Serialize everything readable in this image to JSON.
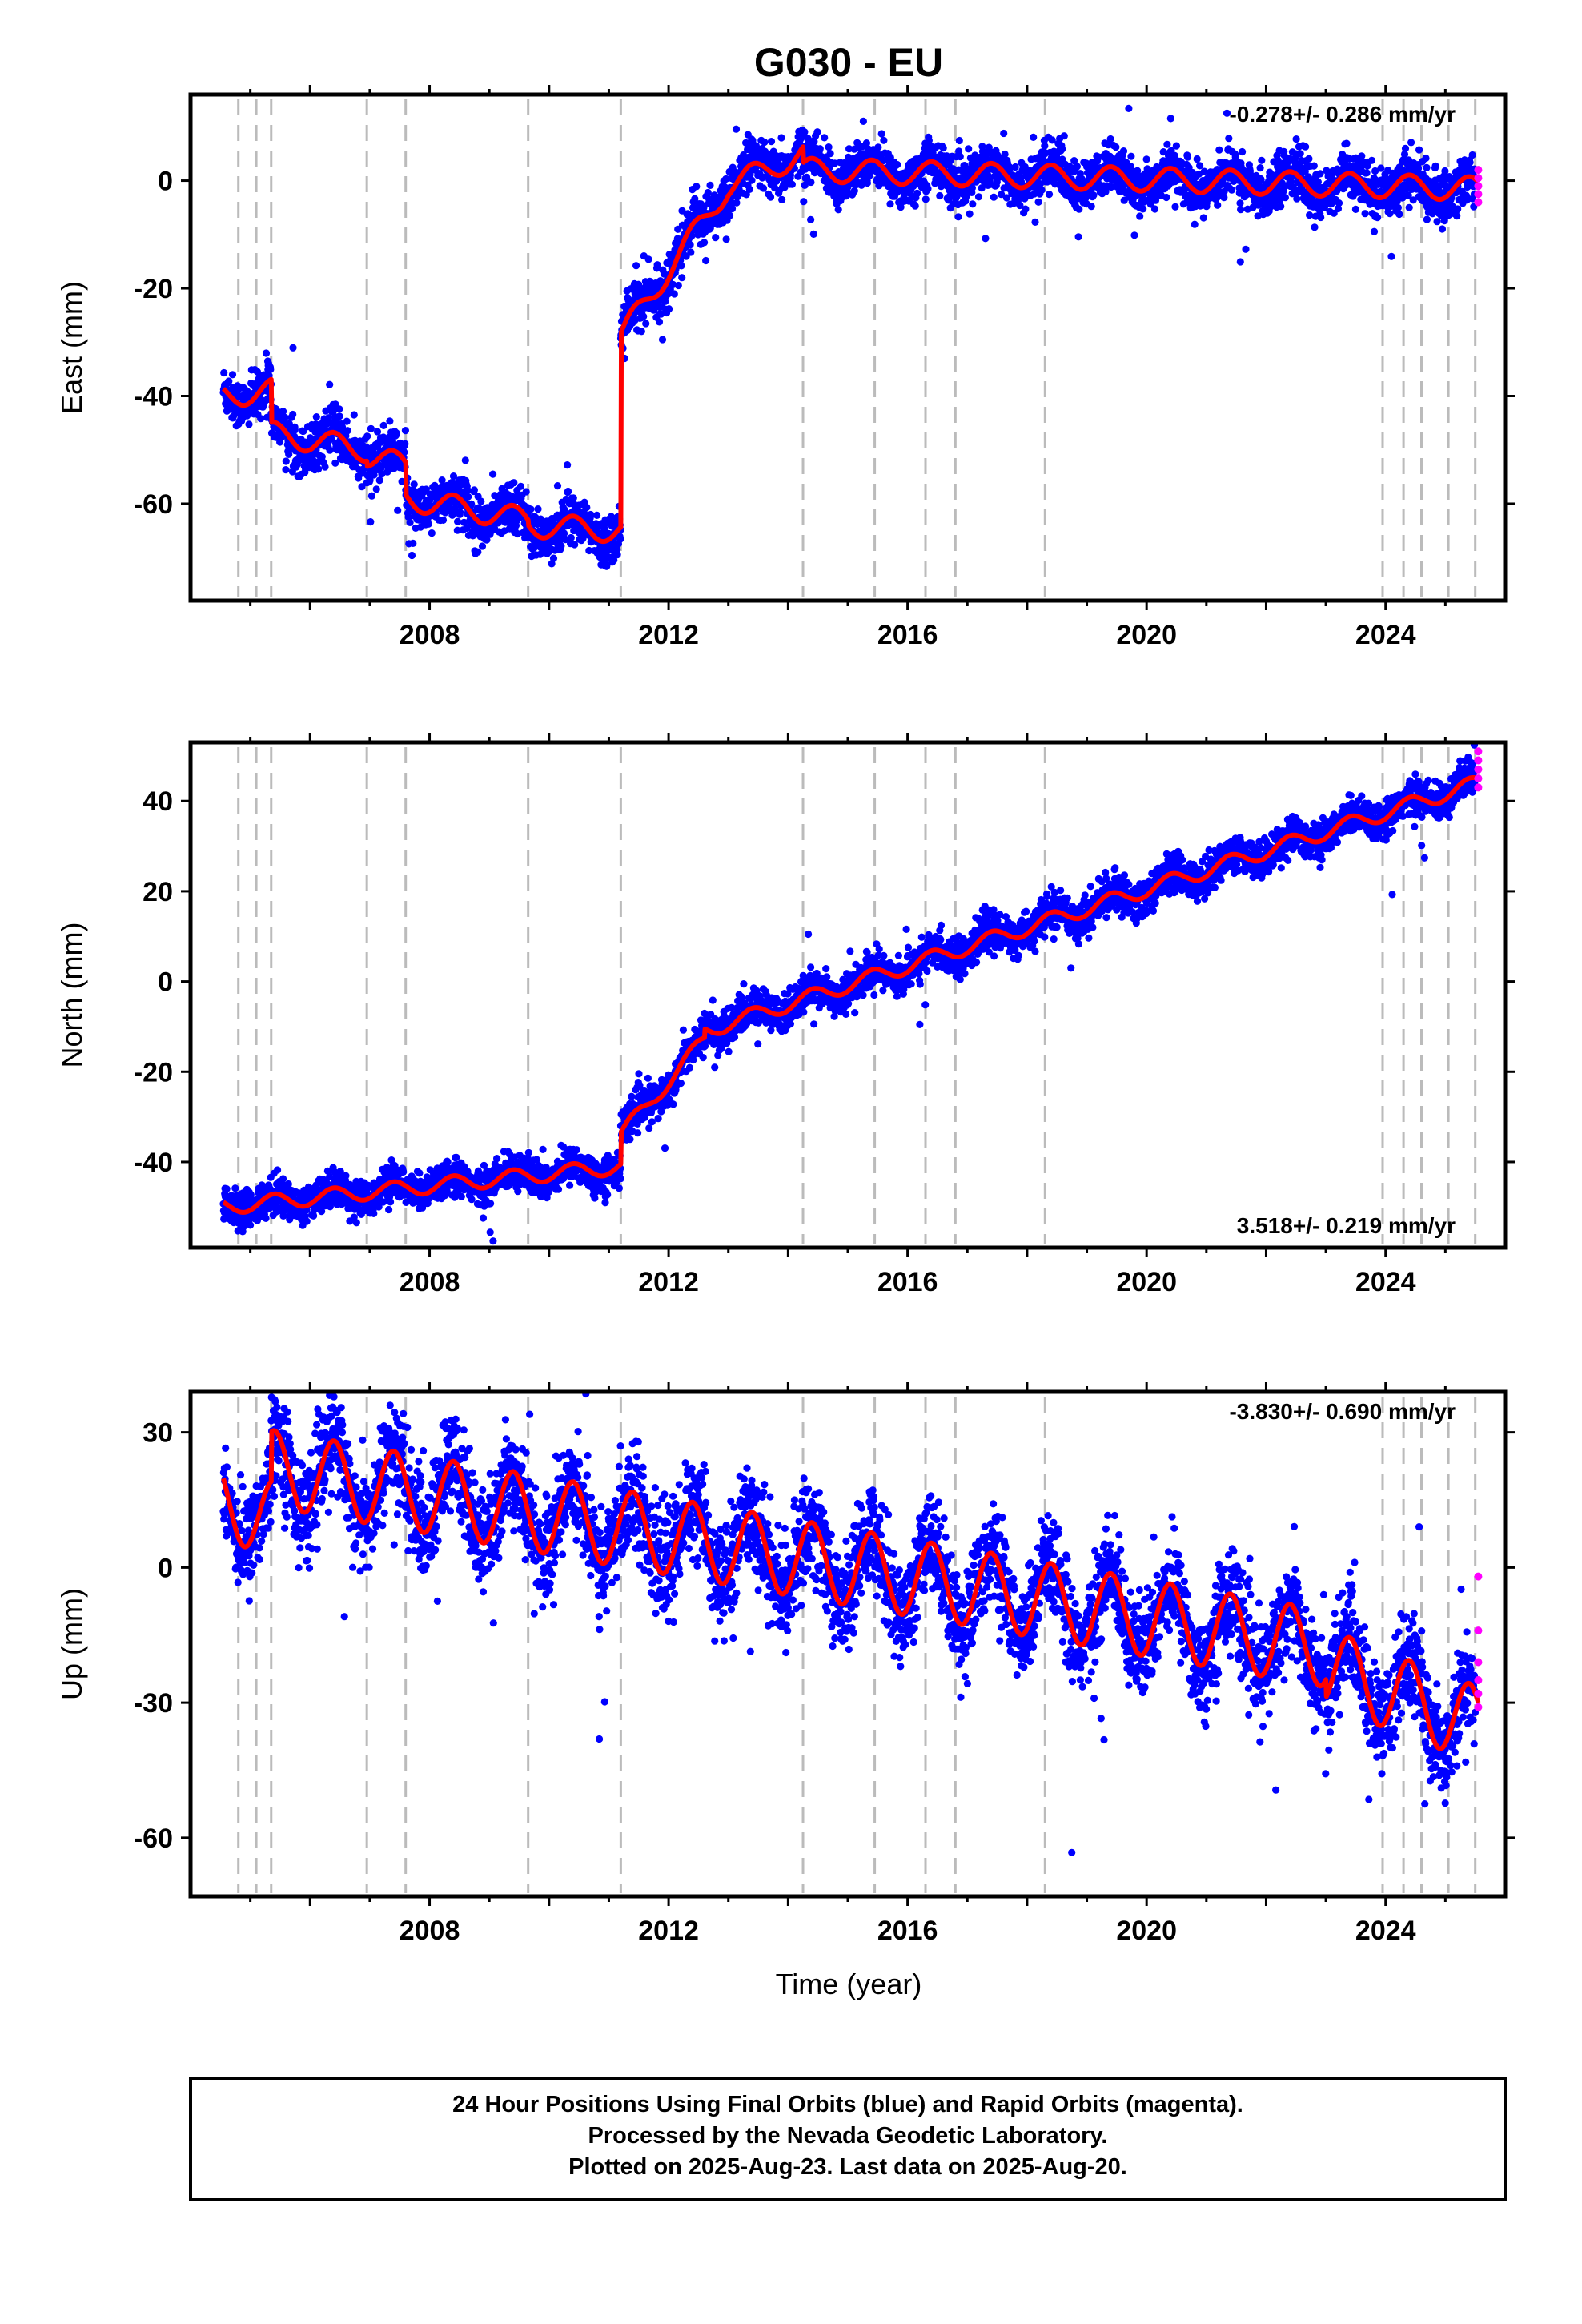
{
  "title": "G030 - EU",
  "xlabel": "Time (year)",
  "x_ticks": [
    "2008",
    "2012",
    "2016",
    "2020",
    "2024"
  ],
  "colors": {
    "final_orbits": "#0000ff",
    "rapid_orbits": "#ff00ff",
    "model_fit": "#ff0000",
    "event_lines": "#bbbbbb"
  },
  "chart_data": [
    {
      "type": "scatter",
      "component": "East",
      "ylabel": "East (mm)",
      "rate_text": "-0.278+/- 0.286 mm/yr",
      "xlim": [
        2004.0,
        2026.0
      ],
      "ylim": [
        -78,
        16
      ],
      "y_ticks": [
        0,
        -20,
        -40,
        -60
      ],
      "event_lines": [
        2004.8,
        2005.1,
        2005.35,
        2006.95,
        2007.6,
        2009.65,
        2011.2,
        2014.25,
        2015.45,
        2016.3,
        2016.8,
        2018.3,
        2023.95,
        2024.3,
        2024.6,
        2025.05,
        2025.5
      ],
      "model": {
        "segments": [
          {
            "t0": 2004.5,
            "t1": 2005.35,
            "v0": -40,
            "v1": -39,
            "rate": 0
          },
          {
            "t0": 2005.35,
            "t1": 2006.95,
            "v0": -47,
            "v1": -50,
            "rate": 0
          },
          {
            "t0": 2006.95,
            "t1": 2007.6,
            "v0": -51,
            "v1": -53,
            "rate": 0
          },
          {
            "t0": 2007.6,
            "t1": 2009.65,
            "v0": -59,
            "v1": -63,
            "rate": 0
          },
          {
            "t0": 2009.65,
            "t1": 2011.2,
            "v0": -64,
            "v1": -65,
            "rate": 0
          },
          {
            "t0": 2011.2,
            "t1": 2013.0,
            "v0": -29,
            "v1": -1,
            "rate": 0
          },
          {
            "t0": 2013.0,
            "t1": 2014.25,
            "v0": -1,
            "v1": 5,
            "rate": 0
          },
          {
            "t0": 2014.25,
            "t1": 2025.55,
            "v0": 2,
            "v1": -1.5,
            "rate": 0
          }
        ],
        "seasonal_amp": 2.2
      },
      "noise": 2.2,
      "rapid": {
        "t": 2025.55,
        "values": [
          2,
          0.5,
          -1,
          -2.5,
          -4
        ]
      }
    },
    {
      "type": "scatter",
      "component": "North",
      "ylabel": "North (mm)",
      "rate_text": "3.518+/- 0.219 mm/yr",
      "xlim": [
        2004.0,
        2026.0
      ],
      "ylim": [
        -59,
        53
      ],
      "y_ticks": [
        40,
        20,
        0,
        -20,
        -40
      ],
      "event_lines": [
        2004.8,
        2005.1,
        2005.35,
        2006.95,
        2007.6,
        2009.65,
        2011.2,
        2014.25,
        2015.45,
        2016.3,
        2016.8,
        2018.3,
        2023.95,
        2024.3,
        2024.6,
        2025.05,
        2025.5
      ],
      "model": {
        "segments": [
          {
            "t0": 2004.5,
            "t1": 2011.2,
            "v0": -50,
            "v1": -41,
            "rate": 0
          },
          {
            "t0": 2011.2,
            "t1": 2012.6,
            "v0": -34,
            "v1": -13,
            "rate": 0
          },
          {
            "t0": 2012.6,
            "t1": 2025.55,
            "v0": -11,
            "v1": 44,
            "rate": 0
          }
        ],
        "seasonal_amp": 1.7
      },
      "noise": 2.0,
      "rapid": {
        "t": 2025.55,
        "values": [
          51,
          49,
          47,
          45,
          43
        ]
      }
    },
    {
      "type": "scatter",
      "component": "Up",
      "ylabel": "Up (mm)",
      "rate_text": "-3.830+/- 0.690 mm/yr",
      "xlim": [
        2004.0,
        2026.0
      ],
      "ylim": [
        -73,
        39
      ],
      "y_ticks": [
        30,
        0,
        -30,
        -60
      ],
      "event_lines": [
        2004.8,
        2005.1,
        2005.35,
        2006.95,
        2007.6,
        2009.65,
        2011.2,
        2014.25,
        2015.45,
        2016.3,
        2016.8,
        2018.3,
        2023.95,
        2024.3,
        2024.6,
        2025.05,
        2025.5
      ],
      "model": {
        "segments": [
          {
            "t0": 2004.5,
            "t1": 2005.35,
            "v0": 15,
            "v1": 11,
            "rate": 0
          },
          {
            "t0": 2005.35,
            "t1": 2023.0,
            "v0": 22,
            "v1": -18,
            "rate": 0
          },
          {
            "t0": 2023.0,
            "t1": 2025.55,
            "v0": -22,
            "v1": -35,
            "rate": 0
          }
        ],
        "seasonal_amp": 8.5
      },
      "noise": 5.5,
      "rapid": {
        "t": 2025.55,
        "values": [
          -2,
          -14,
          -21,
          -25,
          -28,
          -31
        ]
      }
    }
  ],
  "footer": {
    "line1": "24 Hour Positions Using Final Orbits (blue) and Rapid Orbits (magenta).",
    "line2": "Processed by the Nevada Geodetic Laboratory.",
    "line3": "Plotted on 2025-Aug-23. Last data on 2025-Aug-20."
  }
}
